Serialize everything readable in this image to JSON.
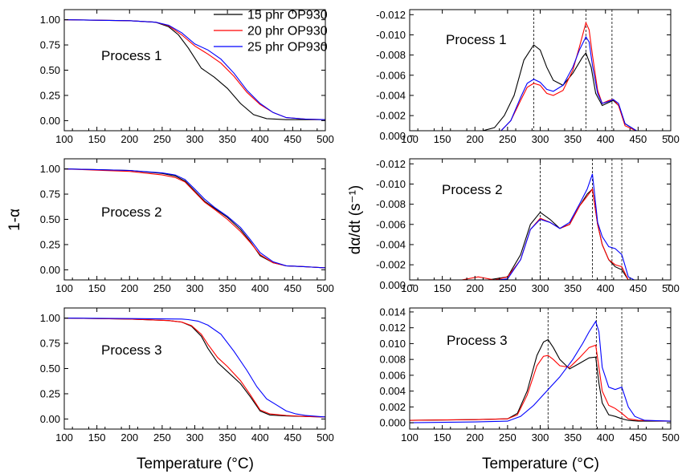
{
  "x_axis_label": "Temperature (°C)",
  "left_y_label": "1-α",
  "right_y_label": "dα/dt (s⁻¹)",
  "legend": [
    {
      "name": "15 phr OP930",
      "color": "#000000"
    },
    {
      "name": "20 phr OP930",
      "color": "#ff0000"
    },
    {
      "name": "25 phr OP930",
      "color": "#0000ff"
    }
  ],
  "chart_data": [
    {
      "type": "line",
      "title": "Process 1",
      "ylim": [
        -0.1,
        1.1
      ],
      "yreverse": false,
      "xlim": [
        100,
        500
      ],
      "xticks": [
        100,
        150,
        200,
        250,
        300,
        350,
        400,
        450,
        500
      ],
      "yticks": [
        0,
        0.25,
        0.5,
        0.75,
        1.0
      ],
      "ytick_labels": [
        "0.00",
        "0.25",
        "0.50",
        "0.75",
        "1.00"
      ],
      "xtick_labels": [
        "100",
        "150",
        "200",
        "250",
        "300",
        "350",
        "400",
        "450",
        "500"
      ],
      "vlines": [],
      "series": [
        {
          "x": [
            100,
            200,
            240,
            260,
            275,
            290,
            300,
            310,
            330,
            350,
            370,
            390,
            410,
            440,
            470,
            500
          ],
          "y": [
            1.0,
            0.99,
            0.975,
            0.93,
            0.85,
            0.72,
            0.62,
            0.52,
            0.43,
            0.32,
            0.17,
            0.06,
            0.02,
            0.01,
            0.01,
            0.01
          ],
          "color": "#000000"
        },
        {
          "x": [
            100,
            200,
            240,
            260,
            280,
            300,
            320,
            340,
            360,
            380,
            400,
            420,
            440,
            470,
            500
          ],
          "y": [
            1.0,
            0.99,
            0.975,
            0.94,
            0.85,
            0.74,
            0.66,
            0.57,
            0.44,
            0.28,
            0.16,
            0.08,
            0.03,
            0.015,
            0.01
          ],
          "color": "#ff0000"
        },
        {
          "x": [
            100,
            200,
            240,
            260,
            280,
            300,
            320,
            340,
            360,
            380,
            400,
            420,
            440,
            470,
            500
          ],
          "y": [
            1.0,
            0.99,
            0.975,
            0.945,
            0.87,
            0.76,
            0.7,
            0.61,
            0.47,
            0.3,
            0.17,
            0.08,
            0.03,
            0.015,
            0.01
          ],
          "color": "#0000ff"
        }
      ]
    },
    {
      "type": "line",
      "title": "Process 1",
      "ylim": [
        -0.0005,
        -0.0125
      ],
      "yreverse": true,
      "xlim": [
        100,
        500
      ],
      "xticks": [
        100,
        150,
        200,
        250,
        300,
        350,
        400,
        450,
        500
      ],
      "yticks": [
        0,
        -0.002,
        -0.004,
        -0.006,
        -0.008,
        -0.01,
        -0.012
      ],
      "ytick_labels": [
        "0.000",
        "-0.002",
        "-0.004",
        "-0.006",
        "-0.008",
        "-0.010",
        "-0.012"
      ],
      "xtick_labels": [
        "100",
        "150",
        "200",
        "250",
        "300",
        "350",
        "400",
        "450",
        "500"
      ],
      "vlines": [
        290,
        370,
        410
      ],
      "series": [
        {
          "x": [
            100,
            200,
            230,
            245,
            260,
            275,
            290,
            300,
            310,
            320,
            335,
            350,
            365,
            370,
            378,
            385,
            395,
            405,
            412,
            420,
            430,
            450,
            500
          ],
          "y": [
            -0.0002,
            -0.0003,
            -0.0008,
            -0.002,
            -0.004,
            -0.0075,
            -0.009,
            -0.0085,
            -0.0068,
            -0.0055,
            -0.005,
            -0.0062,
            -0.0078,
            -0.0082,
            -0.0068,
            -0.0042,
            -0.003,
            -0.0033,
            -0.0035,
            -0.003,
            -0.0012,
            -0.0004,
            -0.0002
          ],
          "color": "#000000"
        },
        {
          "x": [
            100,
            200,
            240,
            255,
            270,
            280,
            290,
            300,
            310,
            320,
            335,
            350,
            360,
            370,
            375,
            380,
            388,
            395,
            405,
            412,
            420,
            430,
            450,
            500
          ],
          "y": [
            -0.0002,
            -0.0002,
            -0.0005,
            -0.0015,
            -0.0035,
            -0.0048,
            -0.0052,
            -0.005,
            -0.0042,
            -0.004,
            -0.0045,
            -0.0065,
            -0.0088,
            -0.0112,
            -0.0105,
            -0.008,
            -0.0045,
            -0.0032,
            -0.0035,
            -0.0036,
            -0.003,
            -0.001,
            -0.0004,
            -0.0002
          ],
          "color": "#ff0000"
        },
        {
          "x": [
            100,
            200,
            240,
            255,
            270,
            280,
            290,
            300,
            310,
            320,
            335,
            350,
            360,
            370,
            375,
            380,
            388,
            395,
            405,
            412,
            420,
            430,
            450,
            500
          ],
          "y": [
            -0.0002,
            -0.0002,
            -0.0005,
            -0.0015,
            -0.0038,
            -0.0052,
            -0.0056,
            -0.0053,
            -0.0046,
            -0.0044,
            -0.005,
            -0.0068,
            -0.0085,
            -0.0098,
            -0.0093,
            -0.007,
            -0.0042,
            -0.0032,
            -0.0034,
            -0.0036,
            -0.0032,
            -0.0012,
            -0.0004,
            -0.0002
          ],
          "color": "#0000ff"
        }
      ]
    },
    {
      "type": "line",
      "title": "Process 2",
      "ylim": [
        -0.1,
        1.1
      ],
      "yreverse": false,
      "xlim": [
        100,
        500
      ],
      "xticks": [
        100,
        150,
        200,
        250,
        300,
        350,
        400,
        450,
        500
      ],
      "yticks": [
        0,
        0.25,
        0.5,
        0.75,
        1.0
      ],
      "ytick_labels": [
        "0.00",
        "0.25",
        "0.50",
        "0.75",
        "1.00"
      ],
      "xtick_labels": [
        "100",
        "150",
        "200",
        "250",
        "300",
        "350",
        "400",
        "450",
        "500"
      ],
      "vlines": [],
      "series": [
        {
          "x": [
            100,
            200,
            250,
            270,
            285,
            300,
            315,
            330,
            350,
            370,
            385,
            400,
            420,
            440,
            470,
            500
          ],
          "y": [
            1.0,
            0.985,
            0.955,
            0.93,
            0.88,
            0.78,
            0.68,
            0.61,
            0.52,
            0.4,
            0.28,
            0.14,
            0.07,
            0.04,
            0.03,
            0.02
          ],
          "color": "#000000"
        },
        {
          "x": [
            100,
            200,
            250,
            270,
            285,
            300,
            315,
            330,
            350,
            370,
            385,
            400,
            420,
            440,
            470,
            500
          ],
          "y": [
            1.0,
            0.975,
            0.94,
            0.915,
            0.87,
            0.77,
            0.67,
            0.6,
            0.5,
            0.38,
            0.27,
            0.15,
            0.07,
            0.04,
            0.03,
            0.02
          ],
          "color": "#ff0000"
        },
        {
          "x": [
            100,
            200,
            250,
            270,
            285,
            300,
            315,
            330,
            350,
            370,
            385,
            400,
            420,
            440,
            470,
            500
          ],
          "y": [
            1.0,
            0.985,
            0.96,
            0.94,
            0.895,
            0.8,
            0.7,
            0.62,
            0.53,
            0.42,
            0.3,
            0.17,
            0.08,
            0.04,
            0.03,
            0.02
          ],
          "color": "#0000ff"
        }
      ]
    },
    {
      "type": "line",
      "title": "Process 2",
      "ylim": [
        -0.0005,
        -0.0125
      ],
      "yreverse": true,
      "xlim": [
        100,
        500
      ],
      "xticks": [
        100,
        150,
        200,
        250,
        300,
        350,
        400,
        450,
        500
      ],
      "yticks": [
        0,
        -0.002,
        -0.004,
        -0.006,
        -0.008,
        -0.01,
        -0.012
      ],
      "ytick_labels": [
        "0.000",
        "-0.002",
        "-0.004",
        "-0.006",
        "-0.008",
        "-0.010",
        "-0.012"
      ],
      "xtick_labels": [
        "100",
        "150",
        "200",
        "250",
        "300",
        "350",
        "400",
        "450",
        "500"
      ],
      "vlines": [
        300,
        380,
        410,
        425
      ],
      "series": [
        {
          "x": [
            100,
            180,
            220,
            250,
            270,
            285,
            300,
            315,
            330,
            345,
            360,
            372,
            380,
            388,
            395,
            405,
            415,
            425,
            435,
            450,
            500
          ],
          "y": [
            -0.0003,
            -0.0004,
            -0.0005,
            -0.0008,
            -0.003,
            -0.006,
            -0.0072,
            -0.0065,
            -0.0056,
            -0.006,
            -0.0078,
            -0.009,
            -0.0095,
            -0.006,
            -0.004,
            -0.0025,
            -0.0018,
            -0.0015,
            -0.0005,
            -0.0003,
            -0.0002
          ],
          "color": "#000000"
        },
        {
          "x": [
            100,
            180,
            205,
            230,
            250,
            270,
            285,
            300,
            315,
            330,
            345,
            360,
            372,
            380,
            388,
            395,
            405,
            415,
            425,
            435,
            450,
            500
          ],
          "y": [
            -0.0003,
            -0.0005,
            -0.0008,
            -0.0005,
            -0.0008,
            -0.0025,
            -0.0055,
            -0.0066,
            -0.0062,
            -0.0056,
            -0.006,
            -0.0078,
            -0.0088,
            -0.0095,
            -0.006,
            -0.004,
            -0.0025,
            -0.002,
            -0.0018,
            -0.0005,
            -0.0003,
            -0.0002
          ],
          "color": "#ff0000"
        },
        {
          "x": [
            100,
            180,
            220,
            250,
            270,
            285,
            300,
            315,
            330,
            345,
            360,
            372,
            380,
            388,
            395,
            405,
            415,
            425,
            435,
            450,
            500
          ],
          "y": [
            -0.0003,
            -0.0004,
            -0.0004,
            -0.0006,
            -0.0025,
            -0.0055,
            -0.0065,
            -0.0062,
            -0.0056,
            -0.0062,
            -0.008,
            -0.0095,
            -0.011,
            -0.0062,
            -0.0048,
            -0.0038,
            -0.0036,
            -0.003,
            -0.0008,
            -0.0003,
            -0.0002
          ],
          "color": "#0000ff"
        }
      ]
    },
    {
      "type": "line",
      "title": "Process 3",
      "ylim": [
        -0.1,
        1.1
      ],
      "yreverse": false,
      "xlim": [
        100,
        500
      ],
      "xticks": [
        100,
        150,
        200,
        250,
        300,
        350,
        400,
        450,
        500
      ],
      "yticks": [
        0,
        0.25,
        0.5,
        0.75,
        1.0
      ],
      "ytick_labels": [
        "0.00",
        "0.25",
        "0.50",
        "0.75",
        "1.00"
      ],
      "xtick_labels": [
        "100",
        "150",
        "200",
        "250",
        "300",
        "350",
        "400",
        "450",
        "500"
      ],
      "vlines": [],
      "series": [
        {
          "x": [
            100,
            200,
            260,
            280,
            295,
            310,
            320,
            335,
            350,
            370,
            385,
            400,
            415,
            440,
            470,
            500
          ],
          "y": [
            1.0,
            0.99,
            0.975,
            0.96,
            0.92,
            0.82,
            0.7,
            0.56,
            0.47,
            0.35,
            0.22,
            0.08,
            0.04,
            0.03,
            0.025,
            0.02
          ],
          "color": "#000000"
        },
        {
          "x": [
            100,
            200,
            260,
            280,
            295,
            310,
            320,
            335,
            350,
            370,
            385,
            400,
            415,
            440,
            470,
            500
          ],
          "y": [
            1.0,
            0.99,
            0.975,
            0.96,
            0.925,
            0.84,
            0.74,
            0.61,
            0.52,
            0.38,
            0.24,
            0.09,
            0.05,
            0.035,
            0.025,
            0.02
          ],
          "color": "#ff0000"
        },
        {
          "x": [
            100,
            200,
            280,
            290,
            305,
            320,
            340,
            360,
            380,
            395,
            410,
            425,
            440,
            455,
            470,
            500
          ],
          "y": [
            1.0,
            0.995,
            0.99,
            0.985,
            0.97,
            0.93,
            0.84,
            0.67,
            0.48,
            0.32,
            0.2,
            0.14,
            0.08,
            0.05,
            0.035,
            0.02
          ],
          "color": "#0000ff"
        }
      ]
    },
    {
      "type": "line",
      "title": "Process 3",
      "ylim": [
        -0.0008,
        0.0145
      ],
      "yreverse": false,
      "xlim": [
        100,
        500
      ],
      "xticks": [
        100,
        150,
        200,
        250,
        300,
        350,
        400,
        450,
        500
      ],
      "yticks": [
        0,
        0.002,
        0.004,
        0.006,
        0.008,
        0.01,
        0.012,
        0.014
      ],
      "ytick_labels": [
        "0.000",
        "0.002",
        "0.004",
        "0.006",
        "0.008",
        "0.010",
        "0.012",
        "0.014"
      ],
      "xtick_labels": [
        "100",
        "150",
        "200",
        "250",
        "300",
        "350",
        "400",
        "450",
        "500"
      ],
      "vlines": [
        312,
        386,
        425
      ],
      "series": [
        {
          "x": [
            100,
            200,
            250,
            265,
            280,
            295,
            305,
            312,
            320,
            330,
            345,
            360,
            375,
            385,
            390,
            395,
            405,
            415,
            425,
            435,
            450,
            500
          ],
          "y": [
            0.0003,
            0.0004,
            0.0005,
            0.0012,
            0.004,
            0.0085,
            0.0102,
            0.0105,
            0.0095,
            0.008,
            0.0068,
            0.0075,
            0.0082,
            0.0083,
            0.005,
            0.0025,
            0.001,
            0.0008,
            0.0005,
            0.0003,
            0.0002,
            0.0002
          ],
          "color": "#000000"
        },
        {
          "x": [
            100,
            200,
            250,
            265,
            280,
            295,
            305,
            312,
            320,
            330,
            345,
            360,
            375,
            385,
            390,
            395,
            405,
            415,
            425,
            435,
            450,
            500
          ],
          "y": [
            0.0003,
            0.0004,
            0.0005,
            0.001,
            0.0035,
            0.0072,
            0.0084,
            0.0085,
            0.008,
            0.0072,
            0.007,
            0.0082,
            0.0095,
            0.0098,
            0.007,
            0.004,
            0.0022,
            0.0018,
            0.0012,
            0.0005,
            0.0003,
            0.0002
          ],
          "color": "#ff0000"
        },
        {
          "x": [
            100,
            200,
            250,
            270,
            290,
            310,
            330,
            350,
            365,
            375,
            385,
            390,
            395,
            405,
            415,
            425,
            435,
            445,
            460,
            500
          ],
          "y": [
            0.0,
            0.0001,
            0.0002,
            0.0008,
            0.0022,
            0.004,
            0.0058,
            0.008,
            0.01,
            0.0115,
            0.0128,
            0.0115,
            0.007,
            0.0045,
            0.0042,
            0.0045,
            0.002,
            0.0008,
            0.0003,
            0.0002
          ],
          "color": "#0000ff"
        }
      ]
    }
  ]
}
